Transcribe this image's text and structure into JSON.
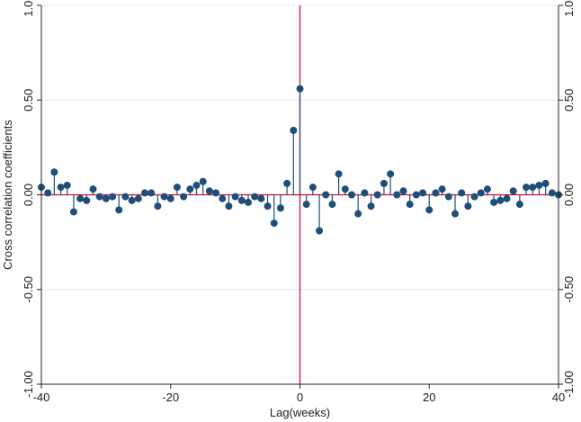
{
  "chart_data": {
    "type": "scatter",
    "style": "stem",
    "title": "",
    "xlabel": "Lag(weeks)",
    "ylabel": "Cross correlation coefficients",
    "xlim": [
      -40,
      40
    ],
    "ylim": [
      -1.0,
      1.0
    ],
    "x_ticks": [
      -40,
      -20,
      0,
      20,
      40
    ],
    "x_tick_labels": [
      "-40",
      "-20",
      "0",
      "20",
      "40"
    ],
    "y_ticks": [
      -1.0,
      -0.5,
      0.0,
      0.5,
      1.0
    ],
    "y_tick_labels": [
      "-1.00",
      "-0.50",
      "0.00",
      "0.50",
      "1.00"
    ],
    "mirror_y_axis_right": true,
    "grid": "horizontal",
    "reference_lines": {
      "horizontal_at": 0,
      "vertical_at": 0
    },
    "colors": {
      "markers": "#1f4e79",
      "reference_lines": "#c8102e",
      "grid": "#e3ecec"
    },
    "x": [
      -40,
      -39,
      -38,
      -37,
      -36,
      -35,
      -34,
      -33,
      -32,
      -31,
      -30,
      -29,
      -28,
      -27,
      -26,
      -25,
      -24,
      -23,
      -22,
      -21,
      -20,
      -19,
      -18,
      -17,
      -16,
      -15,
      -14,
      -13,
      -12,
      -11,
      -10,
      -9,
      -8,
      -7,
      -6,
      -5,
      -4,
      -3,
      -2,
      -1,
      0,
      1,
      2,
      3,
      4,
      5,
      6,
      7,
      8,
      9,
      10,
      11,
      12,
      13,
      14,
      15,
      16,
      17,
      18,
      19,
      20,
      21,
      22,
      23,
      24,
      25,
      26,
      27,
      28,
      29,
      30,
      31,
      32,
      33,
      34,
      35,
      36,
      37,
      38,
      39,
      40
    ],
    "y": [
      0.04,
      0.01,
      0.12,
      0.04,
      0.05,
      -0.09,
      -0.02,
      -0.03,
      0.03,
      -0.01,
      -0.02,
      -0.01,
      -0.08,
      -0.01,
      -0.03,
      -0.02,
      0.01,
      0.01,
      -0.06,
      -0.01,
      -0.02,
      0.04,
      -0.01,
      0.03,
      0.05,
      0.07,
      0.02,
      0.01,
      -0.02,
      -0.06,
      -0.01,
      -0.03,
      -0.04,
      -0.01,
      -0.02,
      -0.06,
      -0.15,
      -0.07,
      0.06,
      0.34,
      0.56,
      -0.05,
      0.04,
      -0.19,
      0.0,
      -0.05,
      0.11,
      0.03,
      0.0,
      -0.1,
      0.01,
      -0.06,
      0.0,
      0.06,
      0.11,
      0.0,
      0.02,
      -0.05,
      0.0,
      0.01,
      -0.08,
      0.01,
      0.03,
      -0.01,
      -0.1,
      0.01,
      -0.06,
      -0.01,
      0.01,
      0.03,
      -0.04,
      -0.03,
      -0.02,
      0.02,
      -0.05,
      0.04,
      0.04,
      0.05,
      0.06,
      0.01,
      0.0
    ]
  }
}
